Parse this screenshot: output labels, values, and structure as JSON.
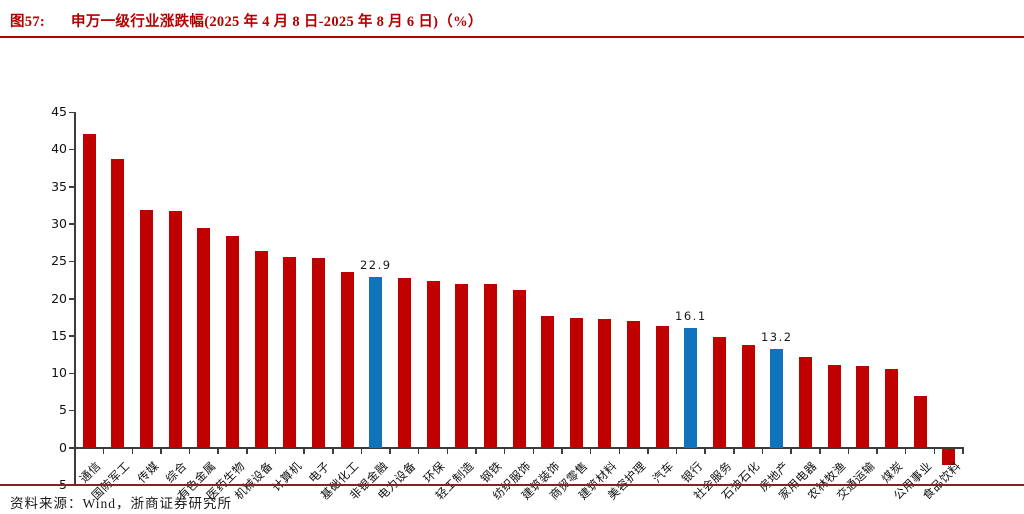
{
  "figure": {
    "label": "图57:",
    "title": "申万一级行业涨跌幅(2025 年 4 月 8 日-2025 年 8 月 6 日)（%）"
  },
  "footer": {
    "source": "资料来源：Wind，浙商证券研究所"
  },
  "colors": {
    "bar_red": "#c00000",
    "bar_blue": "#1273bd",
    "title_red": "#b40000",
    "footer_rule_red": "#8b2020",
    "axis": "#3c3c3c"
  },
  "chart_data": {
    "type": "bar",
    "title": "申万一级行业涨跌幅(2025年4月8日-2025年8月6日)(%)",
    "xlabel": "",
    "ylabel": "",
    "ylim": [
      -5,
      45
    ],
    "ytick_step": 5,
    "yticks": [
      45,
      40,
      35,
      30,
      25,
      20,
      15,
      10,
      5,
      0,
      -5
    ],
    "grid": false,
    "legend": false,
    "categories": [
      "通信",
      "国防军工",
      "传媒",
      "综合",
      "有色金属",
      "医药生物",
      "机械设备",
      "计算机",
      "电子",
      "基础化工",
      "非银金融",
      "电力设备",
      "环保",
      "轻工制造",
      "钢铁",
      "纺织服饰",
      "建筑装饰",
      "商贸零售",
      "建筑材料",
      "美容护理",
      "汽车",
      "银行",
      "社会服务",
      "石油石化",
      "房地产",
      "家用电器",
      "农林牧渔",
      "交通运输",
      "煤炭",
      "公用事业",
      "食品饮料"
    ],
    "values": [
      42.0,
      38.7,
      31.8,
      31.7,
      29.5,
      28.4,
      26.4,
      25.5,
      25.4,
      23.6,
      22.9,
      22.8,
      22.3,
      22.0,
      21.9,
      21.1,
      17.6,
      17.4,
      17.3,
      17.0,
      16.3,
      16.1,
      14.9,
      13.8,
      13.2,
      12.2,
      11.1,
      11.0,
      10.5,
      6.9,
      -2.1
    ],
    "highlight_indices": [
      10,
      21,
      24
    ],
    "data_labels": [
      {
        "index": 10,
        "text": "22.9"
      },
      {
        "index": 21,
        "text": "16.1"
      },
      {
        "index": 24,
        "text": "13.2"
      }
    ]
  }
}
